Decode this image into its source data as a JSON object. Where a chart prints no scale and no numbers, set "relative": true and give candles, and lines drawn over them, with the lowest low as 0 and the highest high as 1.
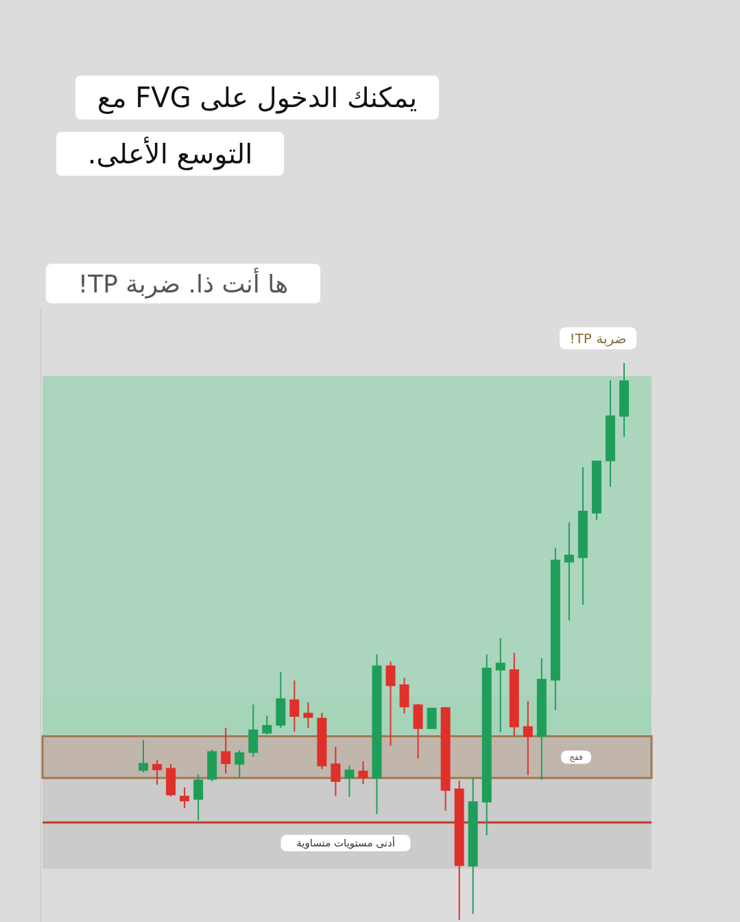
{
  "chart_data": {
    "type": "candlestick",
    "title": "يمكنك الدخول على FVG مع التوسع الأعلى.",
    "subtitle": "ها أنت ذا. ضربة TP!",
    "relative": true,
    "categories": [
      null,
      null,
      null,
      null,
      null,
      null,
      null,
      null,
      null,
      null,
      null,
      null,
      null,
      null,
      null,
      null,
      null,
      null,
      null,
      null,
      null,
      null,
      null,
      null,
      null,
      null,
      null,
      null,
      null,
      null,
      null,
      null,
      null,
      null,
      null,
      null
    ],
    "ohlc": [
      [
        0.268,
        0.323,
        0.265,
        0.282
      ],
      [
        0.28,
        0.287,
        0.243,
        0.269
      ],
      [
        0.273,
        0.28,
        0.222,
        0.224
      ],
      [
        0.223,
        0.238,
        0.201,
        0.213
      ],
      [
        0.216,
        0.261,
        0.179,
        0.252
      ],
      [
        0.252,
        0.306,
        0.249,
        0.303
      ],
      [
        0.303,
        0.345,
        0.263,
        0.28
      ],
      [
        0.279,
        0.305,
        0.255,
        0.301
      ],
      [
        0.3,
        0.387,
        0.293,
        0.342
      ],
      [
        0.335,
        0.367,
        0.333,
        0.35
      ],
      [
        0.349,
        0.445,
        0.345,
        0.398
      ],
      [
        0.396,
        0.43,
        0.338,
        0.365
      ],
      [
        0.372,
        0.391,
        0.345,
        0.363
      ],
      [
        0.363,
        0.372,
        0.271,
        0.276
      ],
      [
        0.281,
        0.311,
        0.223,
        0.248
      ],
      [
        0.254,
        0.277,
        0.221,
        0.27
      ],
      [
        0.268,
        0.285,
        0.244,
        0.255
      ],
      [
        0.254,
        0.477,
        0.19,
        0.457
      ],
      [
        0.457,
        0.464,
        0.313,
        0.42
      ],
      [
        0.423,
        0.435,
        0.371,
        0.382
      ],
      [
        0.387,
        0.388,
        0.29,
        0.343
      ],
      [
        0.343,
        0.381,
        0.343,
        0.381
      ],
      [
        0.382,
        0.382,
        0.196,
        0.232
      ],
      [
        0.236,
        0.25,
        0,
        0.097
      ],
      [
        0.096,
        0.255,
        0.011,
        0.213
      ],
      [
        0.211,
        0.477,
        0.152,
        0.453
      ],
      [
        0.448,
        0.506,
        0.337,
        0.462
      ],
      [
        0.45,
        0.48,
        0.33,
        0.346
      ],
      [
        0.348,
        0.393,
        0.26,
        0.329
      ],
      [
        0.329,
        0.47,
        0.252,
        0.433
      ],
      [
        0.43,
        0.668,
        0.377,
        0.647
      ],
      [
        0.642,
        0.714,
        0.538,
        0.656
      ],
      [
        0.65,
        0.813,
        0.566,
        0.735
      ],
      [
        0.73,
        0.825,
        0.718,
        0.825
      ],
      [
        0.824,
        0.969,
        0.778,
        0.906
      ],
      [
        0.904,
        1,
        0.868,
        0.969
      ]
    ],
    "colors": [
      "#1f9e5a",
      "#e0302a",
      "#e0302a",
      "#e0302a",
      "#1f9e5a",
      "#1f9e5a",
      "#e0302a",
      "#1f9e5a",
      "#1f9e5a",
      "#1f9e5a",
      "#1f9e5a",
      "#e0302a",
      "#e0302a",
      "#e0302a",
      "#e0302a",
      "#1f9e5a",
      "#e0302a",
      "#1f9e5a",
      "#e0302a",
      "#e0302a",
      "#e0302a",
      "#1f9e5a",
      "#e0302a",
      "#e0302a",
      "#1f9e5a",
      "#1f9e5a",
      "#1f9e5a",
      "#e0302a",
      "#e0302a",
      "#1f9e5a",
      "#1f9e5a",
      "#1f9e5a",
      "#1f9e5a",
      "#1f9e5a",
      "#1f9e5a",
      "#1f9e5a"
    ],
    "bands": [
      {
        "axis": "y",
        "from": 0.333,
        "to": 0.977,
        "label": "ضربة TP!",
        "color": "#a3d4b8"
      },
      {
        "axis": "y",
        "from": 0.092,
        "to": 0.333,
        "label": null,
        "color": "#c8c8c8"
      },
      {
        "axis": "y",
        "from": 0.333,
        "to": 0.401,
        "label": null,
        "color": "#a3d4b8"
      },
      {
        "axis": "y",
        "from": 0.255,
        "to": 0.33,
        "label": "ففج",
        "color": "#a07850"
      }
    ],
    "ref_lines": [
      {
        "axis": "y",
        "value": 0.175,
        "label": "أدنى مستويات متساوية",
        "color": "#c0392b"
      }
    ]
  }
}
